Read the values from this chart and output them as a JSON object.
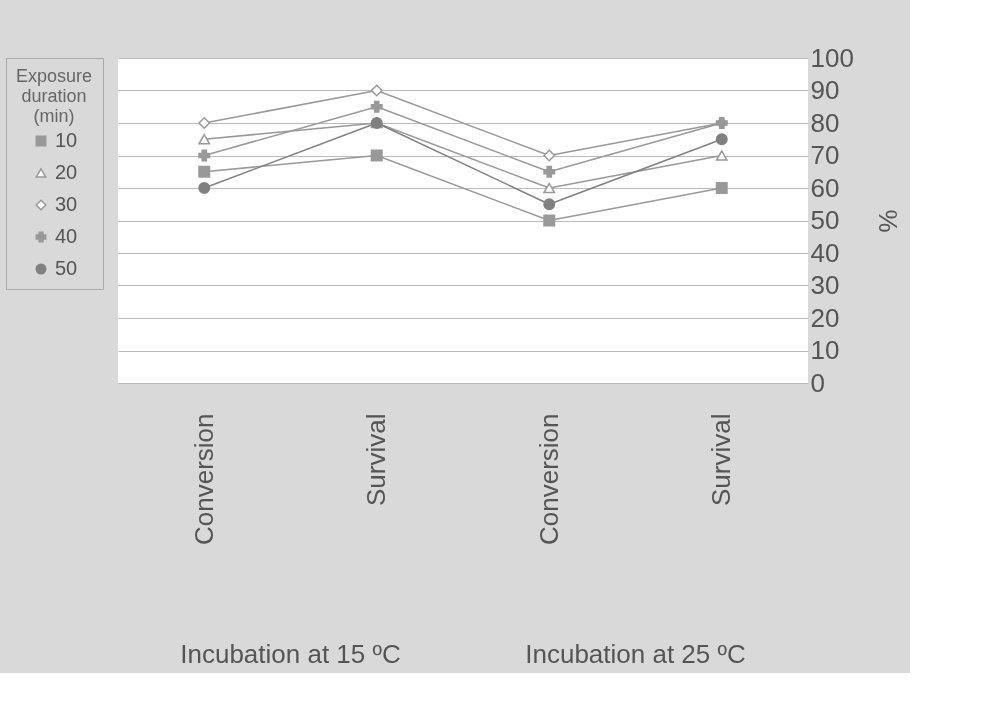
{
  "chart_data": {
    "type": "line",
    "categories": [
      "Conversion",
      "Survival",
      "Conversion",
      "Survival"
    ],
    "ylabel": "%",
    "legend_title": "Exposure duration (min)",
    "ylim": [
      0,
      100
    ],
    "yticks": [
      0,
      10,
      20,
      30,
      40,
      50,
      60,
      70,
      80,
      90,
      100
    ],
    "grid": "y",
    "legend": "left",
    "line_style": "solid",
    "annotations": [
      "Incubation at 15 ºC",
      "Incubation at 25 ºC"
    ],
    "series": [
      {
        "name": "10",
        "color": "#999999",
        "marker": "square",
        "values": [
          65,
          70,
          50,
          60
        ]
      },
      {
        "name": "20",
        "color": "#999999",
        "marker": "triangle",
        "values": [
          75,
          80,
          60,
          70
        ]
      },
      {
        "name": "30",
        "color": "#999999",
        "marker": "diamond",
        "values": [
          80,
          90,
          70,
          80
        ]
      },
      {
        "name": "40",
        "color": "#999999",
        "marker": "cross",
        "values": [
          70,
          85,
          65,
          80
        ]
      },
      {
        "name": "50",
        "color": "#808080",
        "marker": "circle",
        "values": [
          60,
          80,
          55,
          75
        ]
      }
    ]
  }
}
